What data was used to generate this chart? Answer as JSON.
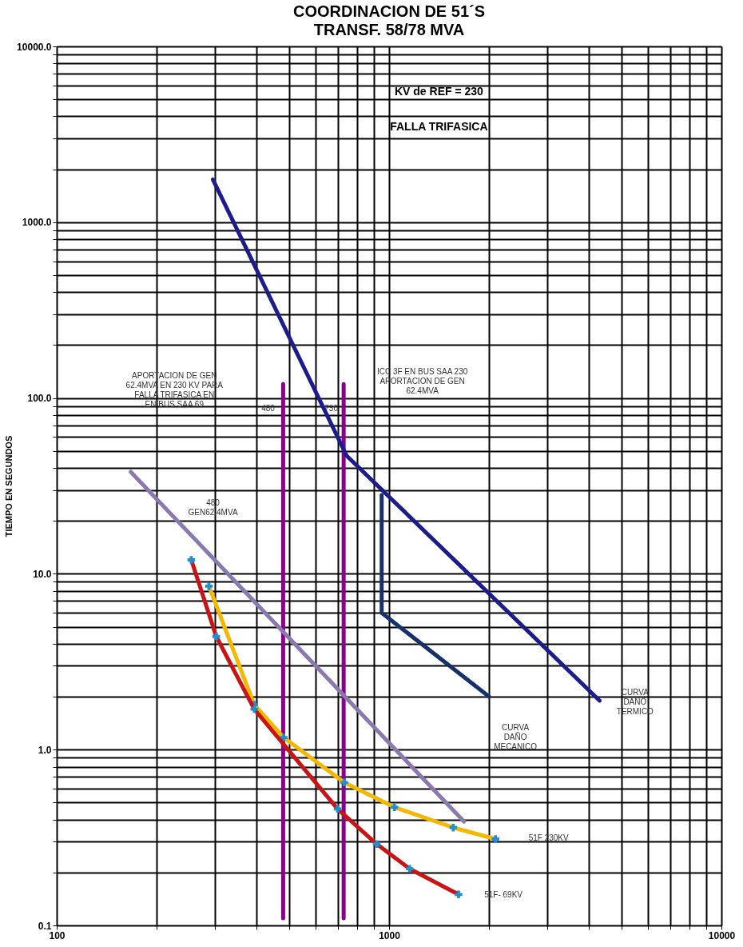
{
  "chart_data": {
    "type": "line",
    "title": "COORDINACION  DE  51´S",
    "subtitle": "TRANSF. 58/78 MVA",
    "ylabel": "TIEMPO EN SEGUNDOS",
    "log": "xy",
    "grid": true,
    "xlim": [
      100,
      10000
    ],
    "ylim": [
      0.1,
      10000
    ],
    "xticks": [
      100,
      {
        "value": 200,
        "label": null
      },
      {
        "value": 300,
        "label": null
      },
      {
        "value": 400,
        "label": null
      },
      {
        "value": 500,
        "label": null
      },
      {
        "value": 600,
        "label": null
      },
      {
        "value": 700,
        "label": null
      },
      {
        "value": 800,
        "label": null
      },
      {
        "value": 900,
        "label": null
      },
      1000,
      {
        "value": 2000,
        "label": null
      },
      {
        "value": 3000,
        "label": null
      },
      {
        "value": 4000,
        "label": null
      },
      {
        "value": 5000,
        "label": null
      },
      {
        "value": 6000,
        "label": null
      },
      {
        "value": 7000,
        "label": null
      },
      {
        "value": 8000,
        "label": null
      },
      {
        "value": 9000,
        "label": null
      },
      10000
    ],
    "yticks": [
      {
        "value": 0.1,
        "label": "0.1"
      },
      {
        "value": 0.2,
        "label": null
      },
      {
        "value": 0.3,
        "label": null
      },
      {
        "value": 0.4,
        "label": null
      },
      {
        "value": 0.5,
        "label": null
      },
      {
        "value": 0.6,
        "label": null
      },
      {
        "value": 0.7,
        "label": null
      },
      {
        "value": 0.8,
        "label": null
      },
      {
        "value": 0.9,
        "label": null
      },
      {
        "value": 1,
        "label": "1.0"
      },
      {
        "value": 2,
        "label": null
      },
      {
        "value": 3,
        "label": null
      },
      {
        "value": 4,
        "label": null
      },
      {
        "value": 5,
        "label": null
      },
      {
        "value": 6,
        "label": null
      },
      {
        "value": 7,
        "label": null
      },
      {
        "value": 8,
        "label": null
      },
      {
        "value": 9,
        "label": null
      },
      {
        "value": 10,
        "label": "10.0"
      },
      {
        "value": 20,
        "label": null
      },
      {
        "value": 30,
        "label": null
      },
      {
        "value": 40,
        "label": null
      },
      {
        "value": 50,
        "label": null
      },
      {
        "value": 60,
        "label": null
      },
      {
        "value": 70,
        "label": null
      },
      {
        "value": 80,
        "label": null
      },
      {
        "value": 90,
        "label": null
      },
      {
        "value": 100,
        "label": "100.0"
      },
      {
        "value": 200,
        "label": null
      },
      {
        "value": 300,
        "label": null
      },
      {
        "value": 400,
        "label": null
      },
      {
        "value": 500,
        "label": null
      },
      {
        "value": 600,
        "label": null
      },
      {
        "value": 700,
        "label": null
      },
      {
        "value": 800,
        "label": null
      },
      {
        "value": 900,
        "label": null
      },
      {
        "value": 1000,
        "label": "1000.0"
      },
      {
        "value": 2000,
        "label": null
      },
      {
        "value": 3000,
        "label": null
      },
      {
        "value": 4000,
        "label": null
      },
      {
        "value": 5000,
        "label": null
      },
      {
        "value": 6000,
        "label": null
      },
      {
        "value": 7000,
        "label": null
      },
      {
        "value": 8000,
        "label": null
      },
      {
        "value": 9000,
        "label": null
      },
      {
        "value": 10000,
        "label": "10000.0"
      }
    ],
    "series": [
      {
        "color": "#8b008b",
        "x": [
          480,
          480
        ],
        "values": [
          0.11,
          120
        ],
        "marker": "none"
      },
      {
        "color": "#8b008b",
        "x": [
          730,
          730
        ],
        "values": [
          0.11,
          120
        ],
        "marker": "none"
      },
      {
        "color": "#1c1c8c",
        "x": [
          295,
          745,
          4300
        ],
        "values": [
          1750,
          47,
          1.9
        ],
        "marker": "none"
      },
      {
        "color": "#17306b",
        "x": [
          950,
          950,
          2000
        ],
        "values": [
          28,
          6,
          2.0
        ],
        "marker": "none"
      },
      {
        "color": "#8a78b0",
        "x": [
          167,
          1680
        ],
        "values": [
          38,
          0.39
        ],
        "marker": "none"
      },
      {
        "color": "#f5b800",
        "x": [
          287,
          393,
          482,
          733,
          1038,
          1560,
          2090
        ],
        "values": [
          8.5,
          1.8,
          1.17,
          0.65,
          0.47,
          0.36,
          0.31
        ],
        "marker": "cross"
      },
      {
        "color": "#c81414",
        "x": [
          254,
          302,
          393,
          700,
          918,
          1153,
          1618
        ],
        "values": [
          12,
          4.4,
          1.7,
          0.46,
          0.29,
          0.21,
          0.15
        ],
        "marker": "cross"
      }
    ],
    "annotations": [
      "KV de REF =  230",
      "FALLA TRIFASICA",
      "APORTACION DE GEN\n62.4MVA EN 230 KV PARA\nFALLA TRIFASICA EN\nEN BUS SAA 69",
      "ICC 3F EN BUS SAA 230\nAPORTACION DE GEN\n62.4MVA",
      "480",
      "730",
      "480\nGEN62.4MVA",
      "CURVA\nDAÑO\nTERMICO",
      "CURVA\nDAÑO\nMECANICO",
      "51F 230KV",
      "51F- 69KV"
    ]
  }
}
